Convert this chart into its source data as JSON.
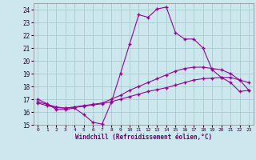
{
  "bg_color": "#cce8ee",
  "grid_color": "#b0d8e0",
  "line_color": "#990099",
  "xlabel": "Windchill (Refroidissement éolien,°C)",
  "xlim": [
    -0.5,
    23.5
  ],
  "ylim": [
    15,
    24.5
  ],
  "yticks": [
    15,
    16,
    17,
    18,
    19,
    20,
    21,
    22,
    23,
    24
  ],
  "xticks": [
    0,
    1,
    2,
    3,
    4,
    5,
    6,
    7,
    8,
    9,
    10,
    11,
    12,
    13,
    14,
    15,
    16,
    17,
    18,
    19,
    20,
    21,
    22,
    23
  ],
  "line1_x": [
    0,
    1,
    2,
    3,
    4,
    5,
    6,
    7,
    8,
    9,
    10,
    11,
    12,
    13,
    14,
    15,
    16,
    17,
    18,
    19,
    20,
    21,
    22,
    23
  ],
  "line1_y": [
    17.0,
    16.65,
    16.2,
    16.2,
    16.3,
    15.8,
    15.2,
    15.05,
    16.75,
    19.0,
    21.3,
    23.6,
    23.4,
    24.05,
    24.2,
    22.2,
    21.7,
    21.7,
    21.0,
    19.3,
    18.7,
    18.3,
    17.6,
    17.7
  ],
  "line2_x": [
    0,
    1,
    2,
    3,
    4,
    5,
    6,
    7,
    8,
    9,
    10,
    11,
    12,
    13,
    14,
    15,
    16,
    17,
    18,
    19,
    20,
    21,
    22,
    23
  ],
  "line2_y": [
    16.8,
    16.6,
    16.4,
    16.3,
    16.4,
    16.5,
    16.6,
    16.7,
    17.0,
    17.3,
    17.7,
    18.0,
    18.3,
    18.6,
    18.9,
    19.2,
    19.4,
    19.5,
    19.5,
    19.4,
    19.3,
    19.0,
    18.5,
    18.3
  ],
  "line3_x": [
    0,
    1,
    2,
    3,
    4,
    5,
    6,
    7,
    8,
    9,
    10,
    11,
    12,
    13,
    14,
    15,
    16,
    17,
    18,
    19,
    20,
    21,
    22,
    23
  ],
  "line3_y": [
    16.7,
    16.5,
    16.35,
    16.3,
    16.35,
    16.45,
    16.55,
    16.65,
    16.8,
    17.0,
    17.2,
    17.4,
    17.6,
    17.75,
    17.9,
    18.1,
    18.3,
    18.5,
    18.6,
    18.65,
    18.7,
    18.7,
    18.5,
    17.7
  ]
}
